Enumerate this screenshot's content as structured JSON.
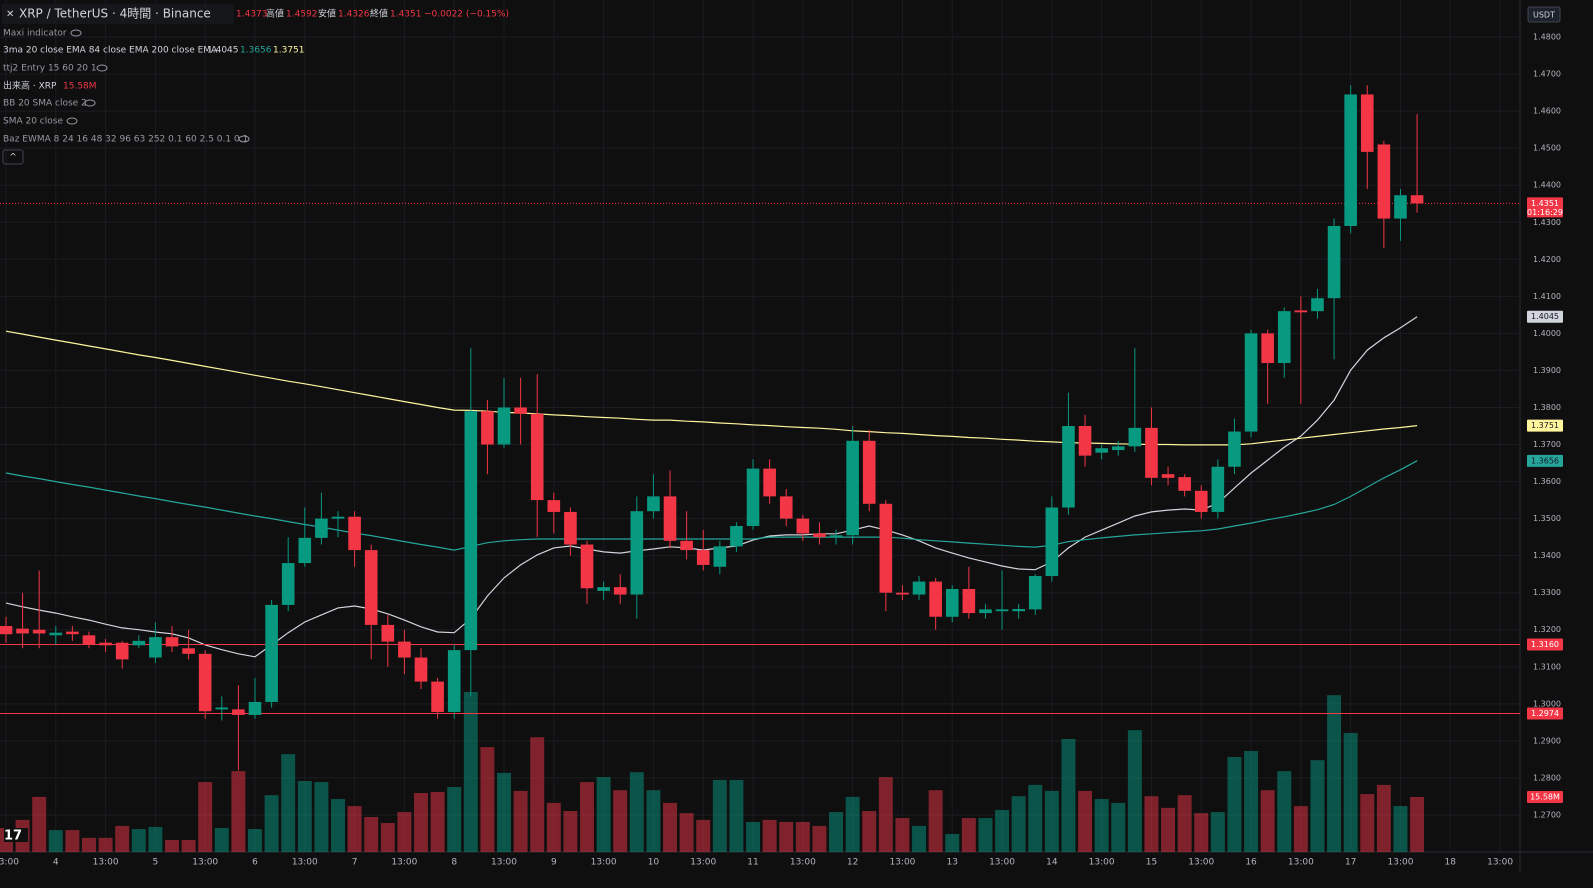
{
  "chart_data": {
    "type": "candlestick",
    "title": "XRP / TetherUS · 4時間 · Binance",
    "header": {
      "labels": [
        "高値",
        "安値",
        "終値"
      ],
      "change": "−0.0022 (−0.15%)"
    },
    "currency": "USDT",
    "countdown": "01:16:29",
    "up_color": "#089981",
    "down_color": "#f23645",
    "xlim": [
      -0.36,
      91.2
    ],
    "xticks": [
      {
        "value": 0,
        "label": "13:00"
      },
      {
        "value": 3,
        "label": "4"
      },
      {
        "value": 6,
        "label": "13:00"
      },
      {
        "value": 9,
        "label": "5"
      },
      {
        "value": 12,
        "label": "13:00"
      },
      {
        "value": 15,
        "label": "6"
      },
      {
        "value": 18,
        "label": "13:00"
      },
      {
        "value": 21,
        "label": "7"
      },
      {
        "value": 24,
        "label": "13:00"
      },
      {
        "value": 27,
        "label": "8"
      },
      {
        "value": 30,
        "label": "13:00"
      },
      {
        "value": 33,
        "label": "9"
      },
      {
        "value": 36,
        "label": "13:00"
      },
      {
        "value": 39,
        "label": "10"
      },
      {
        "value": 42,
        "label": "13:00"
      },
      {
        "value": 45,
        "label": "11"
      },
      {
        "value": 48,
        "label": "13:00"
      },
      {
        "value": 51,
        "label": "12"
      },
      {
        "value": 54,
        "label": "13:00"
      },
      {
        "value": 57,
        "label": "13"
      },
      {
        "value": 60,
        "label": "13:00"
      },
      {
        "value": 63,
        "label": "14"
      },
      {
        "value": 66,
        "label": "13:00"
      },
      {
        "value": 69,
        "label": "15"
      },
      {
        "value": 72,
        "label": "13:00"
      },
      {
        "value": 75,
        "label": "16"
      },
      {
        "value": 78,
        "label": "13:00"
      },
      {
        "value": 81,
        "label": "17"
      },
      {
        "value": 84,
        "label": "13:00"
      },
      {
        "value": 87,
        "label": "18"
      },
      {
        "value": 90,
        "label": "13:00"
      }
    ],
    "ylim": [
      1.26,
      1.49
    ],
    "yticks": [
      {
        "value": 1.48,
        "label": "1.4800"
      },
      {
        "value": 1.47,
        "label": "1.4700"
      },
      {
        "value": 1.46,
        "label": "1.4600"
      },
      {
        "value": 1.45,
        "label": "1.4500"
      },
      {
        "value": 1.44,
        "label": "1.4400"
      },
      {
        "value": 1.43,
        "label": "1.4300"
      },
      {
        "value": 1.42,
        "label": "1.4200"
      },
      {
        "value": 1.41,
        "label": "1.4100"
      },
      {
        "value": 1.4,
        "label": "1.4000"
      },
      {
        "value": 1.39,
        "label": "1.3900"
      },
      {
        "value": 1.38,
        "label": "1.3800"
      },
      {
        "value": 1.37,
        "label": "1.3700"
      },
      {
        "value": 1.36,
        "label": "1.3600"
      },
      {
        "value": 1.35,
        "label": "1.3500"
      },
      {
        "value": 1.34,
        "label": "1.3400"
      },
      {
        "value": 1.33,
        "label": "1.3300"
      },
      {
        "value": 1.32,
        "label": "1.3200"
      },
      {
        "value": 1.31,
        "label": "1.3100"
      },
      {
        "value": 1.3,
        "label": "1.3000"
      },
      {
        "value": 1.29,
        "label": "1.2900"
      },
      {
        "value": 1.28,
        "label": "1.2800"
      },
      {
        "value": 1.27,
        "label": "1.2700"
      }
    ],
    "grid": true,
    "open": [
      1.321,
      1.3203,
      1.32,
      1.3185,
      1.3195,
      1.3185,
      1.3165,
      1.3165,
      1.3158,
      1.3125,
      1.318,
      1.315,
      1.3135,
      1.2985,
      1.2985,
      1.297,
      1.3005,
      1.3267,
      1.338,
      1.3448,
      1.35,
      1.3505,
      1.3415,
      1.3213,
      1.3168,
      1.3125,
      1.306,
      1.2978,
      1.3145,
      1.379,
      1.37,
      1.38,
      1.3783,
      1.355,
      1.3518,
      1.343,
      1.3305,
      1.3315,
      1.3295,
      1.352,
      1.356,
      1.344,
      1.3415,
      1.337,
      1.3425,
      1.348,
      1.3635,
      1.356,
      1.35,
      1.346,
      1.345,
      1.3455,
      1.371,
      1.354,
      1.33,
      1.3295,
      1.333,
      1.3235,
      1.331,
      1.3245,
      1.325,
      1.325,
      1.3255,
      1.3345,
      1.353,
      1.375,
      1.3678,
      1.3685,
      1.3695,
      1.3745,
      1.362,
      1.3612,
      1.3575,
      1.3518,
      1.364,
      1.3735,
      1.4,
      1.392,
      1.4062,
      1.406,
      1.4095,
      1.429,
      1.4645,
      1.451,
      1.431,
      1.4373
    ],
    "high": [
      1.3235,
      1.33,
      1.336,
      1.321,
      1.321,
      1.3195,
      1.3175,
      1.317,
      1.3185,
      1.322,
      1.321,
      1.32,
      1.3145,
      1.302,
      1.305,
      1.307,
      1.328,
      1.345,
      1.353,
      1.357,
      1.352,
      1.352,
      1.343,
      1.324,
      1.32,
      1.315,
      1.307,
      1.316,
      1.396,
      1.382,
      1.388,
      1.388,
      1.389,
      1.357,
      1.353,
      1.344,
      1.333,
      1.335,
      1.356,
      1.362,
      1.363,
      1.352,
      1.347,
      1.344,
      1.349,
      1.366,
      1.366,
      1.358,
      1.351,
      1.349,
      1.347,
      1.375,
      1.374,
      1.355,
      1.332,
      1.3345,
      1.334,
      1.332,
      1.337,
      1.327,
      1.336,
      1.327,
      1.335,
      1.356,
      1.384,
      1.378,
      1.37,
      1.371,
      1.396,
      1.38,
      1.364,
      1.362,
      1.359,
      1.366,
      1.377,
      1.401,
      1.401,
      1.407,
      1.41,
      1.412,
      1.431,
      1.467,
      1.467,
      1.452,
      1.439,
      1.4592
    ],
    "low": [
      1.3165,
      1.315,
      1.315,
      1.316,
      1.317,
      1.315,
      1.314,
      1.3095,
      1.315,
      1.311,
      1.314,
      1.312,
      1.296,
      1.2955,
      1.282,
      1.296,
      1.299,
      1.325,
      1.337,
      1.343,
      1.345,
      1.337,
      1.312,
      1.31,
      1.308,
      1.304,
      1.296,
      1.296,
      1.302,
      1.362,
      1.369,
      1.37,
      1.345,
      1.346,
      1.34,
      1.327,
      1.328,
      1.327,
      1.323,
      1.35,
      1.342,
      1.339,
      1.336,
      1.335,
      1.341,
      1.347,
      1.354,
      1.348,
      1.344,
      1.343,
      1.343,
      1.343,
      1.352,
      1.325,
      1.328,
      1.328,
      1.32,
      1.322,
      1.323,
      1.323,
      1.32,
      1.323,
      1.324,
      1.333,
      1.351,
      1.364,
      1.366,
      1.367,
      1.368,
      1.359,
      1.359,
      1.356,
      1.35,
      1.35,
      1.362,
      1.372,
      1.381,
      1.388,
      1.381,
      1.404,
      1.393,
      1.427,
      1.439,
      1.423,
      1.425,
      1.4326
    ],
    "close": [
      1.3188,
      1.319,
      1.319,
      1.3192,
      1.3188,
      1.316,
      1.3158,
      1.312,
      1.317,
      1.318,
      1.3155,
      1.3135,
      1.298,
      1.299,
      1.297,
      1.3005,
      1.3267,
      1.338,
      1.3448,
      1.35,
      1.3505,
      1.3415,
      1.3213,
      1.3168,
      1.3125,
      1.306,
      1.2978,
      1.3145,
      1.379,
      1.37,
      1.38,
      1.3783,
      1.355,
      1.3518,
      1.343,
      1.3312,
      1.3315,
      1.3295,
      1.352,
      1.356,
      1.344,
      1.3415,
      1.3375,
      1.3425,
      1.348,
      1.3635,
      1.356,
      1.35,
      1.346,
      1.345,
      1.3455,
      1.371,
      1.354,
      1.33,
      1.3295,
      1.333,
      1.3235,
      1.331,
      1.3245,
      1.3255,
      1.3255,
      1.3256,
      1.3345,
      1.353,
      1.375,
      1.367,
      1.369,
      1.3695,
      1.3745,
      1.361,
      1.361,
      1.3575,
      1.3518,
      1.364,
      1.3735,
      1.4,
      1.392,
      1.406,
      1.4057,
      1.4095,
      1.429,
      1.4645,
      1.449,
      1.431,
      1.4373,
      1.4351
    ],
    "volume": {
      "name": "出来高 · XRP",
      "last_label": "15.58M",
      "values": [
        6.8,
        9.1,
        15.6,
        6.2,
        6.2,
        4.0,
        4.0,
        7.4,
        6.5,
        7.1,
        3.4,
        3.4,
        19.8,
        6.8,
        22.9,
        6.5,
        16.1,
        27.7,
        20.1,
        19.8,
        15.0,
        13.0,
        9.9,
        8.2,
        11.3,
        16.7,
        17.0,
        18.4,
        45.3,
        29.7,
        22.4,
        17.3,
        32.5,
        13.9,
        11.6,
        19.8,
        21.2,
        17.5,
        22.6,
        17.5,
        13.9,
        11.0,
        9.1,
        20.4,
        20.4,
        8.5,
        9.1,
        8.5,
        8.5,
        7.4,
        11.3,
        15.6,
        11.6,
        21.2,
        9.6,
        7.4,
        17.5,
        5.1,
        9.6,
        9.6,
        11.9,
        15.8,
        19.0,
        17.3,
        32.0,
        17.3,
        15.0,
        13.9,
        34.5,
        15.8,
        12.5,
        16.1,
        11.0,
        11.3,
        26.9,
        28.6,
        17.5,
        22.9,
        13.0,
        26.0,
        44.4,
        33.7,
        16.4,
        19.0,
        13.0,
        15.58
      ]
    },
    "indicator": {
      "name": "3ma 20 close EMA 84 close EMA 200 close EMA",
      "lines": [
        {
          "color": "#d1d4dc",
          "values": [
            1.3272,
            1.3262,
            1.3253,
            1.3245,
            1.3235,
            1.3226,
            1.3215,
            1.3205,
            1.32,
            1.3194,
            1.3189,
            1.3178,
            1.3159,
            1.3146,
            1.3135,
            1.3127,
            1.3159,
            1.3192,
            1.3221,
            1.324,
            1.3259,
            1.3264,
            1.3256,
            1.3243,
            1.3226,
            1.3208,
            1.3194,
            1.3192,
            1.323,
            1.3291,
            1.334,
            1.3375,
            1.3402,
            1.3421,
            1.3426,
            1.3418,
            1.341,
            1.3407,
            1.3413,
            1.3418,
            1.3424,
            1.3421,
            1.3415,
            1.3421,
            1.3426,
            1.3442,
            1.3453,
            1.3456,
            1.3456,
            1.3459,
            1.3459,
            1.3469,
            1.348,
            1.3469,
            1.3456,
            1.344,
            1.3421,
            1.3407,
            1.3394,
            1.3383,
            1.3372,
            1.3364,
            1.3362,
            1.3383,
            1.3421,
            1.345,
            1.3469,
            1.3488,
            1.3507,
            1.3518,
            1.3523,
            1.3526,
            1.3523,
            1.3542,
            1.3583,
            1.3623,
            1.3658,
            1.3693,
            1.3723,
            1.3766,
            1.382,
            1.3901,
            1.3955,
            1.3988,
            1.4015,
            1.4045
          ]
        },
        {
          "color": "#26a69a",
          "values": [
            1.3623,
            1.3615,
            1.3608,
            1.36,
            1.3592,
            1.3585,
            1.3577,
            1.3569,
            1.3561,
            1.3554,
            1.3546,
            1.3538,
            1.3531,
            1.3523,
            1.3515,
            1.3507,
            1.35,
            1.3492,
            1.3484,
            1.3477,
            1.3469,
            1.3461,
            1.3454,
            1.3446,
            1.3438,
            1.343,
            1.3423,
            1.3415,
            1.3425,
            1.3435,
            1.344,
            1.3443,
            1.3445,
            1.3445,
            1.3445,
            1.3445,
            1.3445,
            1.3445,
            1.3445,
            1.3445,
            1.3445,
            1.3445,
            1.3445,
            1.3445,
            1.3445,
            1.3445,
            1.345,
            1.345,
            1.345,
            1.345,
            1.345,
            1.345,
            1.345,
            1.345,
            1.3447,
            1.3443,
            1.344,
            1.3437,
            1.3434,
            1.3431,
            1.3428,
            1.3425,
            1.3423,
            1.3428,
            1.3438,
            1.3443,
            1.3448,
            1.3452,
            1.3456,
            1.3459,
            1.3462,
            1.3465,
            1.3467,
            1.3472,
            1.348,
            1.3488,
            1.3497,
            1.3505,
            1.3514,
            1.3524,
            1.3538,
            1.356,
            1.3585,
            1.361,
            1.3632,
            1.3656
          ]
        },
        {
          "color": "#fff59d",
          "values": [
            1.4006,
            1.3998,
            1.399,
            1.3982,
            1.3974,
            1.3966,
            1.3958,
            1.395,
            1.3942,
            1.3935,
            1.3927,
            1.3919,
            1.3911,
            1.3903,
            1.3895,
            1.3887,
            1.3879,
            1.3871,
            1.3864,
            1.3856,
            1.3848,
            1.384,
            1.3832,
            1.3824,
            1.3816,
            1.3808,
            1.38,
            1.3793,
            1.3792,
            1.379,
            1.3787,
            1.3785,
            1.3783,
            1.378,
            1.3778,
            1.3775,
            1.3773,
            1.3771,
            1.3768,
            1.3766,
            1.3766,
            1.3763,
            1.3761,
            1.3758,
            1.3756,
            1.3753,
            1.3751,
            1.3748,
            1.3746,
            1.3744,
            1.3741,
            1.3737,
            1.3735,
            1.3732,
            1.373,
            1.3727,
            1.3724,
            1.3722,
            1.3719,
            1.3717,
            1.3714,
            1.3712,
            1.3709,
            1.3707,
            1.3705,
            1.3704,
            1.3703,
            1.3702,
            1.3701,
            1.37,
            1.37,
            1.3699,
            1.3699,
            1.3699,
            1.3699,
            1.3702,
            1.3707,
            1.3712,
            1.3717,
            1.3722,
            1.3727,
            1.3732,
            1.3737,
            1.3742,
            1.3746,
            1.3751
          ]
        }
      ]
    },
    "hlines": [
      {
        "value": 1.316,
        "label": "1.3160",
        "color": "#f23645"
      },
      {
        "value": 1.2974,
        "label": "1.2974",
        "color": "#f23645"
      }
    ],
    "legend_items": [
      "Maxi indicator",
      "ttj2 Entry 15 60 20 1",
      "BB 20 SMA close 2",
      "SMA 20 close",
      "Baz EWMA 8 24 16 48 32 96 63 252 0.1 60 2.5 0.1 0.1"
    ]
  }
}
